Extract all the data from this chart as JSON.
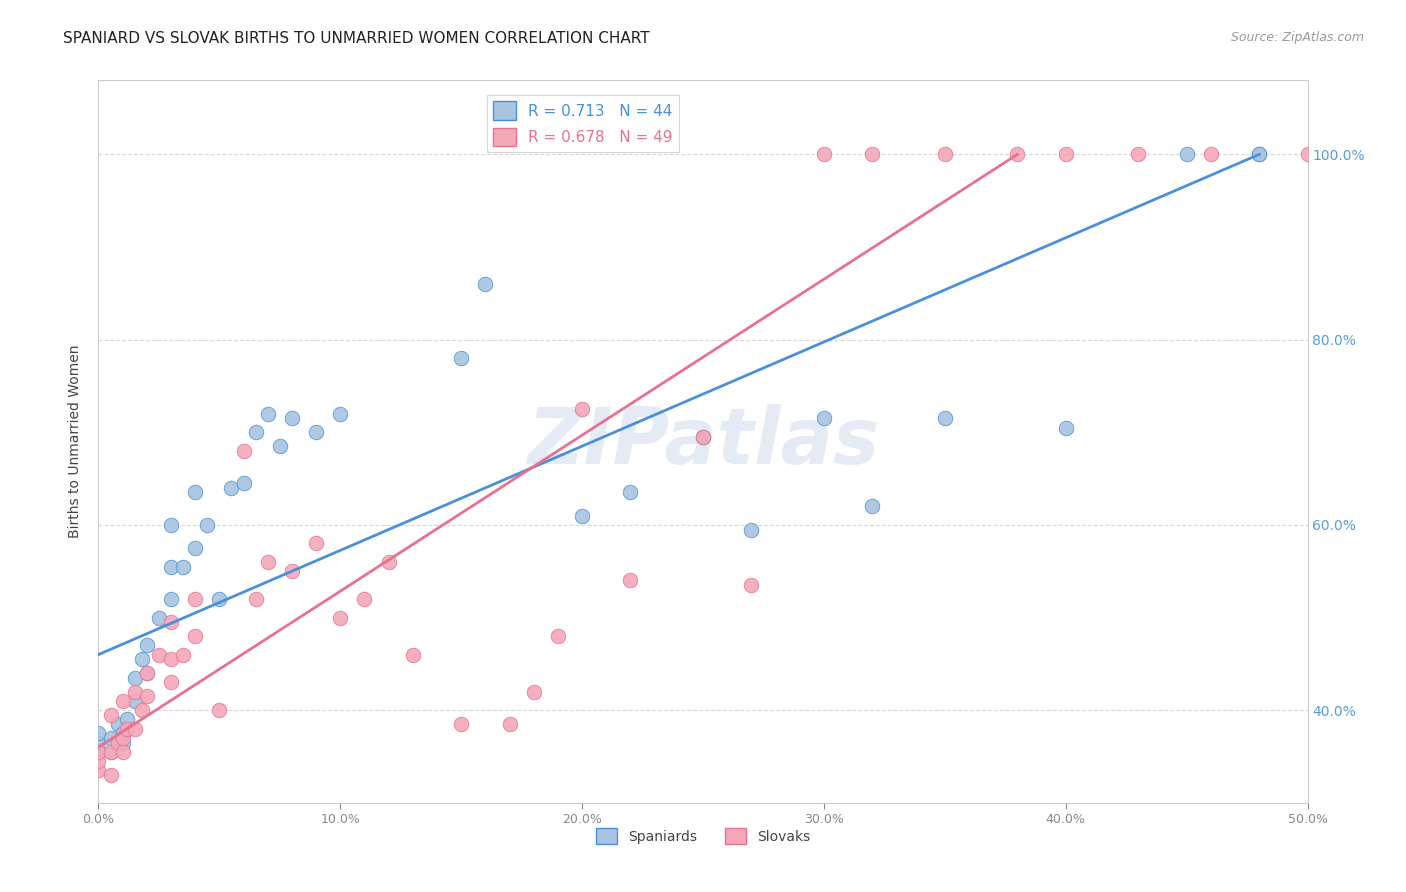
{
  "title": "SPANIARD VS SLOVAK BIRTHS TO UNMARRIED WOMEN CORRELATION CHART",
  "source": "Source: ZipAtlas.com",
  "ylabel": "Births to Unmarried Women",
  "watermark": "ZIPatlas",
  "x_min": 0.0,
  "x_max": 0.5,
  "y_min": 0.3,
  "y_max": 1.08,
  "x_ticks": [
    0.0,
    0.1,
    0.2,
    0.3,
    0.4,
    0.5
  ],
  "x_tick_labels": [
    "0.0%",
    "10.0%",
    "20.0%",
    "30.0%",
    "40.0%",
    "50.0%"
  ],
  "y_ticks": [
    0.4,
    0.6,
    0.8,
    1.0
  ],
  "y_tick_labels": [
    "40.0%",
    "60.0%",
    "80.0%",
    "100.0%"
  ],
  "spaniard_color": "#a8c4e0",
  "slovak_color": "#f4a8b8",
  "spaniard_line_color": "#4a90d9",
  "slovak_line_color": "#e87090",
  "spaniard_R": 0.713,
  "spaniard_N": 44,
  "slovak_R": 0.678,
  "slovak_N": 49,
  "spaniard_line_x0": 0.0,
  "spaniard_line_y0": 0.46,
  "spaniard_line_x1": 0.48,
  "spaniard_line_y1": 1.0,
  "slovak_line_x0": 0.0,
  "slovak_line_y0": 0.36,
  "slovak_line_x1": 0.38,
  "slovak_line_y1": 1.0,
  "spaniard_scatter_x": [
    0.0,
    0.0,
    0.0,
    0.005,
    0.005,
    0.008,
    0.01,
    0.01,
    0.012,
    0.015,
    0.015,
    0.018,
    0.02,
    0.02,
    0.025,
    0.03,
    0.03,
    0.03,
    0.035,
    0.04,
    0.04,
    0.045,
    0.05,
    0.055,
    0.06,
    0.065,
    0.07,
    0.075,
    0.08,
    0.09,
    0.1,
    0.15,
    0.16,
    0.2,
    0.22,
    0.25,
    0.27,
    0.3,
    0.32,
    0.35,
    0.4,
    0.45,
    0.48,
    0.48
  ],
  "spaniard_scatter_y": [
    0.355,
    0.365,
    0.375,
    0.355,
    0.37,
    0.385,
    0.365,
    0.375,
    0.39,
    0.41,
    0.435,
    0.455,
    0.44,
    0.47,
    0.5,
    0.52,
    0.555,
    0.6,
    0.555,
    0.575,
    0.635,
    0.6,
    0.52,
    0.64,
    0.645,
    0.7,
    0.72,
    0.685,
    0.715,
    0.7,
    0.72,
    0.78,
    0.86,
    0.61,
    0.635,
    0.695,
    0.595,
    0.715,
    0.62,
    0.715,
    0.705,
    1.0,
    1.0,
    1.0
  ],
  "slovak_scatter_x": [
    0.0,
    0.0,
    0.0,
    0.005,
    0.005,
    0.005,
    0.008,
    0.01,
    0.01,
    0.01,
    0.012,
    0.015,
    0.015,
    0.018,
    0.02,
    0.02,
    0.025,
    0.03,
    0.03,
    0.03,
    0.035,
    0.04,
    0.04,
    0.05,
    0.06,
    0.065,
    0.07,
    0.08,
    0.09,
    0.1,
    0.11,
    0.12,
    0.13,
    0.15,
    0.17,
    0.18,
    0.19,
    0.2,
    0.22,
    0.25,
    0.27,
    0.3,
    0.32,
    0.35,
    0.38,
    0.4,
    0.43,
    0.46,
    0.5
  ],
  "slovak_scatter_y": [
    0.335,
    0.345,
    0.355,
    0.33,
    0.355,
    0.395,
    0.365,
    0.355,
    0.37,
    0.41,
    0.38,
    0.38,
    0.42,
    0.4,
    0.415,
    0.44,
    0.46,
    0.43,
    0.455,
    0.495,
    0.46,
    0.48,
    0.52,
    0.4,
    0.68,
    0.52,
    0.56,
    0.55,
    0.58,
    0.5,
    0.52,
    0.56,
    0.46,
    0.385,
    0.385,
    0.42,
    0.48,
    0.725,
    0.54,
    0.695,
    0.535,
    1.0,
    1.0,
    1.0,
    1.0,
    1.0,
    1.0,
    1.0,
    1.0
  ],
  "background_color": "#ffffff",
  "grid_color": "#d8d8d8",
  "axis_color": "#cccccc",
  "right_tick_color": "#5a9bd5",
  "title_fontsize": 11,
  "source_fontsize": 9,
  "legend_fontsize": 11
}
